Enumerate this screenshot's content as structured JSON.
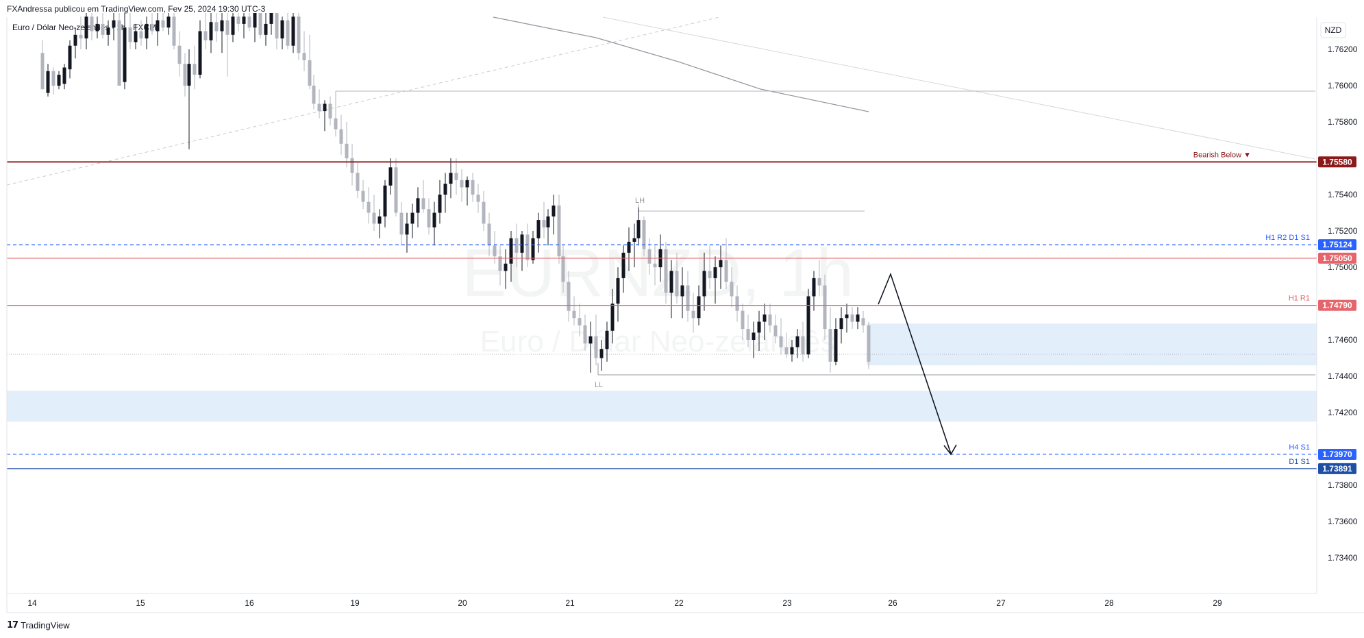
{
  "header": {
    "publisher": "FXAndressa publicou em TradingView.com, Fev 25, 2024 19:30 UTC-3"
  },
  "symbol_label": "Euro / Dólar Neo-zelandês · 1h · FXCM",
  "footer": {
    "brand": "TradingView"
  },
  "currency_badge": "NZD",
  "watermark": {
    "line1": "EURNZD, 1h",
    "line2": "Euro / Dólar Neo-zelandês"
  },
  "colors": {
    "up_candle": "#131722",
    "down_candle": "#b2b5be",
    "bearish_line": "#8b1a1a",
    "red_level": "#e5656b",
    "blue_dashed": "#2962ff",
    "blue_solid": "#1e4fa6",
    "zone_fill": "#e3eefb"
  },
  "chart_data": {
    "type": "candlestick",
    "x_axis": {
      "labels": [
        "14",
        "15",
        "16",
        "19",
        "20",
        "21",
        "22",
        "23",
        "26",
        "27",
        "28",
        "29"
      ]
    },
    "y_axis": {
      "range": [
        1.7322,
        1.764
      ],
      "ticks": [
        "1.76200",
        "1.76000",
        "1.75800",
        "1.75400",
        "1.75200",
        "1.75000",
        "1.74600",
        "1.74400",
        "1.74200",
        "1.73800",
        "1.73600",
        "1.73400"
      ],
      "grid": false
    },
    "levels": [
      {
        "price": 1.7558,
        "tag": "1.75580",
        "label": "Bearish Below ▼",
        "style": "solid",
        "color": "#8b1a1a"
      },
      {
        "price": 1.75124,
        "tag": "1.75124",
        "label": "H1 R2 D1 S1",
        "style": "dashed",
        "color": "#2962ff"
      },
      {
        "price": 1.7505,
        "tag": "1.75050",
        "label": "",
        "style": "solid",
        "color": "#e5656b"
      },
      {
        "price": 1.7479,
        "tag": "1.74790",
        "label": "H1 R1",
        "style": "solid",
        "color": "#e5656b"
      },
      {
        "price": 1.7397,
        "tag": "1.73970",
        "label": "H4 S1",
        "style": "dashed",
        "color": "#2962ff"
      },
      {
        "price": 1.73891,
        "tag": "1.73891",
        "label": "D1 S1",
        "style": "solid",
        "color": "#1e4fa6"
      }
    ],
    "zones": [
      {
        "from": 1.7446,
        "to": 1.7469,
        "fill": "#e3eefb"
      },
      {
        "from": 1.7415,
        "to": 1.7432,
        "fill": "#e3eefb"
      }
    ],
    "structure_labels": [
      {
        "text": "LH",
        "price": 1.7532
      },
      {
        "text": "LL",
        "price": 1.7441
      }
    ],
    "projection": {
      "type": "arrow",
      "from_price": 1.7479,
      "to_price": 1.7398,
      "peak_price": 1.75
    }
  }
}
